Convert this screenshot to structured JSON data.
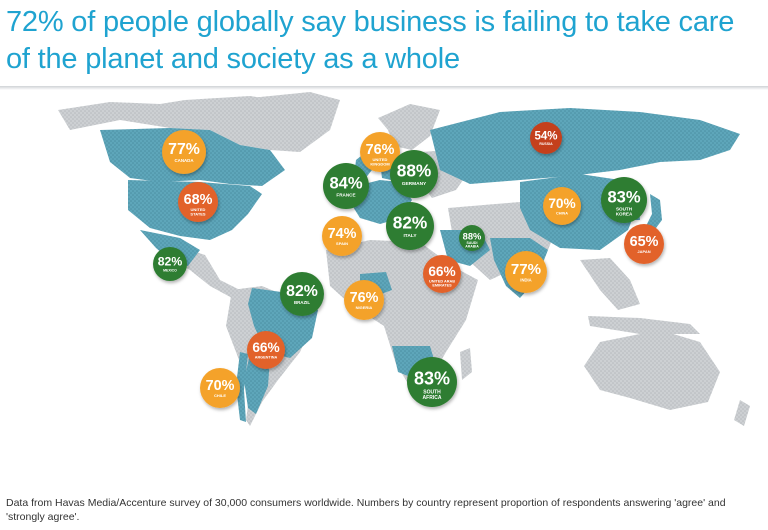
{
  "title": "72% of people globally say business is failing to take care of the planet and society as a whole",
  "caption": "Data from Havas Media/Accenture survey of 30,000 consumers worldwide. Numbers by country represent proportion of respondents answering 'agree' and 'strongly agree'.",
  "colors": {
    "green": "#2e7d32",
    "orange": "#f4a22a",
    "red_orange": "#e2622c",
    "dark_red": "#c4401f",
    "highlight_land": "#5aa3b8",
    "other_land": "#cfd2d4",
    "title": "#1fa3d0"
  },
  "markers": [
    {
      "id": "canada",
      "value": "77%",
      "country": "CANADA",
      "color": "orange"
    },
    {
      "id": "united-states",
      "value": "68%",
      "country": "UNITED STATES",
      "color": "red_orange"
    },
    {
      "id": "mexico",
      "value": "82%",
      "country": "MEXICO",
      "color": "green"
    },
    {
      "id": "brazil",
      "value": "82%",
      "country": "BRAZIL",
      "color": "green"
    },
    {
      "id": "argentina",
      "value": "66%",
      "country": "ARGENTINA",
      "color": "red_orange"
    },
    {
      "id": "chile",
      "value": "70%",
      "country": "CHILE",
      "color": "orange"
    },
    {
      "id": "united-kingdom",
      "value": "76%",
      "country": "UNITED KINGDOM",
      "color": "orange"
    },
    {
      "id": "france",
      "value": "84%",
      "country": "FRANCE",
      "color": "green"
    },
    {
      "id": "germany",
      "value": "88%",
      "country": "GERMANY",
      "color": "green"
    },
    {
      "id": "spain",
      "value": "74%",
      "country": "SPAIN",
      "color": "orange"
    },
    {
      "id": "italy",
      "value": "82%",
      "country": "ITALY",
      "color": "green"
    },
    {
      "id": "nigeria",
      "value": "76%",
      "country": "NIGERIA",
      "color": "orange"
    },
    {
      "id": "south-africa",
      "value": "83%",
      "country": "SOUTH AFRICA",
      "color": "green"
    },
    {
      "id": "saudi-arabia",
      "value": "88%",
      "country": "SAUDI ARABIA",
      "color": "green"
    },
    {
      "id": "uae",
      "value": "66%",
      "country": "UNITED ARAB EMIRATES",
      "color": "red_orange"
    },
    {
      "id": "india",
      "value": "77%",
      "country": "INDIA",
      "color": "orange"
    },
    {
      "id": "russia",
      "value": "54%",
      "country": "RUSSIA",
      "color": "dark_red"
    },
    {
      "id": "china",
      "value": "70%",
      "country": "CHINA",
      "color": "orange"
    },
    {
      "id": "south-korea",
      "value": "83%",
      "country": "SOUTH KOREA",
      "color": "green"
    },
    {
      "id": "japan",
      "value": "65%",
      "country": "JAPAN",
      "color": "red_orange"
    }
  ]
}
